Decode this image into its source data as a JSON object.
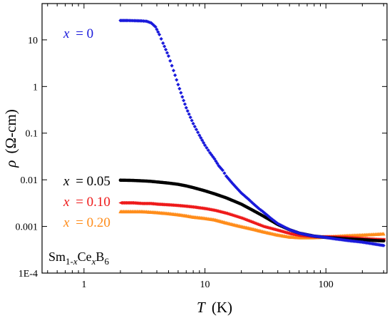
{
  "chart_data": {
    "type": "scatter",
    "title": "",
    "xlabel": "T (K)",
    "xlabel_parts": {
      "var": "T",
      "unit": "(K)"
    },
    "ylabel": "ρ (Ω-cm)",
    "ylabel_parts": {
      "var": "ρ",
      "unit": "(Ω-cm)"
    },
    "xscale": "log",
    "yscale": "log",
    "xlim": [
      0.45,
      320
    ],
    "ylim": [
      0.0001,
      60
    ],
    "x_ticks": [
      1,
      10,
      100
    ],
    "x_tick_labels": [
      "1",
      "10",
      "100"
    ],
    "y_ticks": [
      0.0001,
      0.001,
      0.01,
      0.1,
      1,
      10
    ],
    "y_tick_labels": [
      "1E-4",
      "0.001",
      "0.01",
      "0.1",
      "1",
      "10"
    ],
    "grid": false,
    "legend": "none",
    "annotation": {
      "base": "Sm",
      "sub1": "1-",
      "sub1_var": "x",
      "middle": "Ce",
      "sub2_var": "x",
      "end": "B",
      "sub3": "6"
    },
    "series": [
      {
        "label_var": "x",
        "label_value": "= 0",
        "color": "#1a1adb",
        "marker": "diamond",
        "points": [
          [
            2.0,
            26
          ],
          [
            2.3,
            26
          ],
          [
            2.6,
            25.8
          ],
          [
            3.0,
            25.5
          ],
          [
            3.3,
            25
          ],
          [
            3.6,
            23
          ],
          [
            3.9,
            19
          ],
          [
            4.2,
            13
          ],
          [
            4.5,
            8.5
          ],
          [
            5.0,
            4.5
          ],
          [
            5.5,
            2.2
          ],
          [
            6.0,
            1.1
          ],
          [
            6.5,
            0.6
          ],
          [
            7.0,
            0.35
          ],
          [
            8.0,
            0.16
          ],
          [
            9.0,
            0.09
          ],
          [
            10.0,
            0.055
          ],
          [
            11,
            0.038
          ],
          [
            12,
            0.028
          ],
          [
            13,
            0.02
          ],
          [
            14,
            0.016
          ],
          [
            15,
            0.012
          ],
          [
            17,
            0.0082
          ],
          [
            19,
            0.006
          ],
          [
            20,
            0.0052
          ],
          [
            23,
            0.0038
          ],
          [
            25,
            0.0031
          ],
          [
            28,
            0.0024
          ],
          [
            30,
            0.0021
          ],
          [
            35,
            0.0015
          ],
          [
            40,
            0.00115
          ],
          [
            50,
            0.00085
          ],
          [
            60,
            0.00072
          ],
          [
            70,
            0.00066
          ],
          [
            80,
            0.00062
          ],
          [
            100,
            0.00058
          ],
          [
            120,
            0.00054
          ],
          [
            150,
            0.0005
          ],
          [
            200,
            0.00046
          ],
          [
            250,
            0.00042
          ],
          [
            300,
            0.00039
          ]
        ]
      },
      {
        "label_var": "x",
        "label_value": "= 0.05",
        "color": "#000000",
        "marker": "circle",
        "points": [
          [
            2.0,
            0.0098
          ],
          [
            2.5,
            0.0097
          ],
          [
            3.0,
            0.0095
          ],
          [
            3.5,
            0.0093
          ],
          [
            4.0,
            0.009
          ],
          [
            5.0,
            0.0085
          ],
          [
            6.0,
            0.008
          ],
          [
            7.0,
            0.0074
          ],
          [
            8.0,
            0.0068
          ],
          [
            10,
            0.0058
          ],
          [
            12,
            0.005
          ],
          [
            15,
            0.0041
          ],
          [
            20,
            0.003
          ],
          [
            25,
            0.0022
          ],
          [
            30,
            0.0017
          ],
          [
            40,
            0.0011
          ],
          [
            50,
            0.00085
          ],
          [
            60,
            0.00072
          ],
          [
            80,
            0.00062
          ],
          [
            100,
            0.00058
          ],
          [
            150,
            0.00054
          ],
          [
            200,
            0.00052
          ],
          [
            250,
            0.0005
          ],
          [
            300,
            0.00049
          ]
        ]
      },
      {
        "label_var": "x",
        "label_value": "= 0.10",
        "color": "#ee1a1a",
        "marker": "triangle-left",
        "points": [
          [
            2.0,
            0.0032
          ],
          [
            2.5,
            0.0032
          ],
          [
            3.0,
            0.0031
          ],
          [
            3.5,
            0.0031
          ],
          [
            4.0,
            0.003
          ],
          [
            5.0,
            0.0029
          ],
          [
            6.0,
            0.0028
          ],
          [
            7.0,
            0.0027
          ],
          [
            8.0,
            0.0026
          ],
          [
            10,
            0.0024
          ],
          [
            12,
            0.0022
          ],
          [
            15,
            0.0019
          ],
          [
            20,
            0.0015
          ],
          [
            25,
            0.0012
          ],
          [
            30,
            0.001
          ],
          [
            40,
            0.00082
          ],
          [
            50,
            0.0007
          ],
          [
            60,
            0.00064
          ],
          [
            80,
            0.0006
          ],
          [
            100,
            0.0006
          ],
          [
            150,
            0.00058
          ],
          [
            200,
            0.00055
          ],
          [
            250,
            0.00053
          ],
          [
            300,
            0.00052
          ]
        ]
      },
      {
        "label_var": "x",
        "label_value": "= 0.20",
        "color": "#ff8c1a",
        "marker": "triangle-up",
        "points": [
          [
            2.0,
            0.0021
          ],
          [
            2.5,
            0.0021
          ],
          [
            3.0,
            0.0021
          ],
          [
            3.5,
            0.00205
          ],
          [
            4.0,
            0.002
          ],
          [
            5.0,
            0.0019
          ],
          [
            6.0,
            0.0018
          ],
          [
            7.0,
            0.0017
          ],
          [
            8.0,
            0.0016
          ],
          [
            10,
            0.0015
          ],
          [
            12,
            0.0014
          ],
          [
            15,
            0.0012
          ],
          [
            20,
            0.001
          ],
          [
            25,
            0.00088
          ],
          [
            30,
            0.00078
          ],
          [
            40,
            0.00066
          ],
          [
            50,
            0.0006
          ],
          [
            60,
            0.00058
          ],
          [
            80,
            0.00058
          ],
          [
            100,
            0.0006
          ],
          [
            150,
            0.00064
          ],
          [
            200,
            0.00066
          ],
          [
            250,
            0.00068
          ],
          [
            300,
            0.0007
          ]
        ]
      }
    ]
  }
}
